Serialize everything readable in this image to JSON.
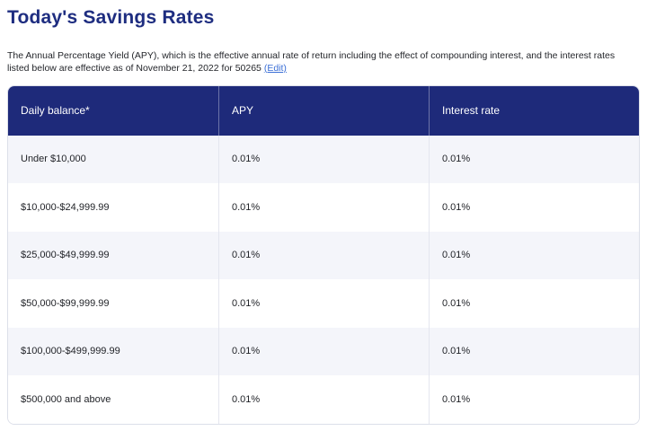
{
  "header": {
    "title": "Today's Savings Rates"
  },
  "intro": {
    "text": "The Annual Percentage Yield (APY), which is the effective annual rate of return including the effect of compounding interest, and the interest rates listed below are effective as of November 21, 2022 for 50265",
    "edit_link": "(Edit)"
  },
  "table": {
    "columns": [
      "Daily balance*",
      "APY",
      "Interest rate"
    ],
    "rows": [
      [
        "Under $10,000",
        "0.01%",
        "0.01%"
      ],
      [
        "$10,000-$24,999.99",
        "0.01%",
        "0.01%"
      ],
      [
        "$25,000-$49,999.99",
        "0.01%",
        "0.01%"
      ],
      [
        "$50,000-$99,999.99",
        "0.01%",
        "0.01%"
      ],
      [
        "$100,000-$499,999.99",
        "0.01%",
        "0.01%"
      ],
      [
        "$500,000 and above",
        "0.01%",
        "0.01%"
      ]
    ]
  },
  "colors": {
    "title_text": "#1e2d80",
    "table_header_bg": "#1e2a7a",
    "table_header_text": "#ffffff",
    "alt_row_bg": "#f4f5fa",
    "link": "#3b6fd6"
  }
}
